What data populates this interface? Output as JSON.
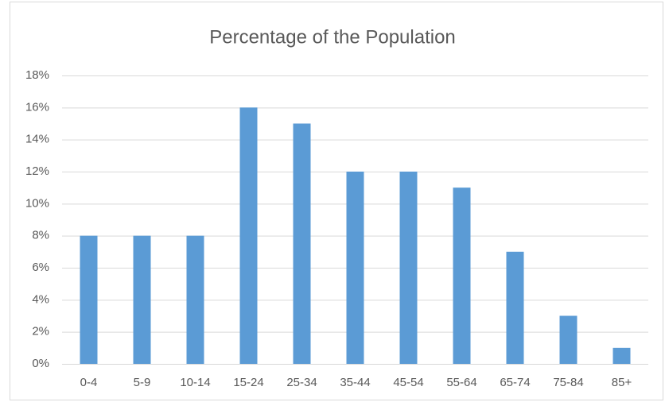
{
  "chart_data": {
    "type": "bar",
    "title": "Percentage of the Population",
    "categories": [
      "0-4",
      "5-9",
      "10-14",
      "15-24",
      "25-34",
      "35-44",
      "45-54",
      "55-64",
      "65-74",
      "75-84",
      "85+"
    ],
    "values": [
      8,
      8,
      8,
      16,
      15,
      12,
      12,
      11,
      7,
      3,
      1
    ],
    "color": "#5b9bd5",
    "ylim": [
      0,
      18
    ],
    "yticks": [
      {
        "value": 0,
        "label": "0%"
      },
      {
        "value": 2,
        "label": "2%"
      },
      {
        "value": 4,
        "label": "4%"
      },
      {
        "value": 6,
        "label": "6%"
      },
      {
        "value": 8,
        "label": "8%"
      },
      {
        "value": 10,
        "label": "10%"
      },
      {
        "value": 12,
        "label": "12%"
      },
      {
        "value": 14,
        "label": "14%"
      },
      {
        "value": 16,
        "label": "16%"
      },
      {
        "value": 18,
        "label": "18%"
      }
    ],
    "grid": true
  }
}
